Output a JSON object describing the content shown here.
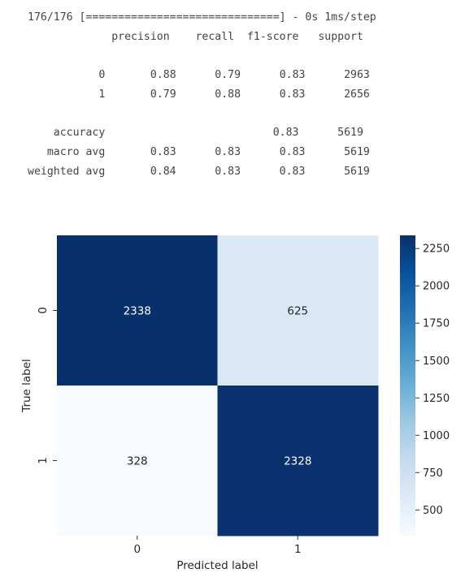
{
  "progress_line": "176/176 [==============================] - 0s 1ms/step",
  "report": {
    "header": [
      "precision",
      "recall",
      "f1-score",
      "support"
    ],
    "rows": [
      {
        "label": "0",
        "precision": "0.88",
        "recall": "0.79",
        "f1": "0.83",
        "support": "2963"
      },
      {
        "label": "1",
        "precision": "0.79",
        "recall": "0.88",
        "f1": "0.83",
        "support": "2656"
      },
      {
        "label": "accuracy",
        "precision": "",
        "recall": "",
        "f1": "0.83",
        "support": "5619"
      },
      {
        "label": "macro avg",
        "precision": "0.83",
        "recall": "0.83",
        "f1": "0.83",
        "support": "5619"
      },
      {
        "label": "weighted avg",
        "precision": "0.84",
        "recall": "0.83",
        "f1": "0.83",
        "support": "5619"
      }
    ]
  },
  "chart_data": {
    "type": "heatmap",
    "title": "",
    "xlabel": "Predicted label",
    "ylabel": "True label",
    "x_categories": [
      "0",
      "1"
    ],
    "y_categories": [
      "0",
      "1"
    ],
    "values": [
      [
        2338,
        625
      ],
      [
        328,
        2328
      ]
    ],
    "annotations": [
      [
        "2338",
        "625"
      ],
      [
        "328",
        "2328"
      ]
    ],
    "colormap": "Blues",
    "color_range": [
      328,
      2338
    ],
    "colorbar_ticks": [
      500,
      750,
      1000,
      1250,
      1500,
      1750,
      2000,
      2250
    ],
    "grid": false,
    "colorbar_position": "right"
  }
}
